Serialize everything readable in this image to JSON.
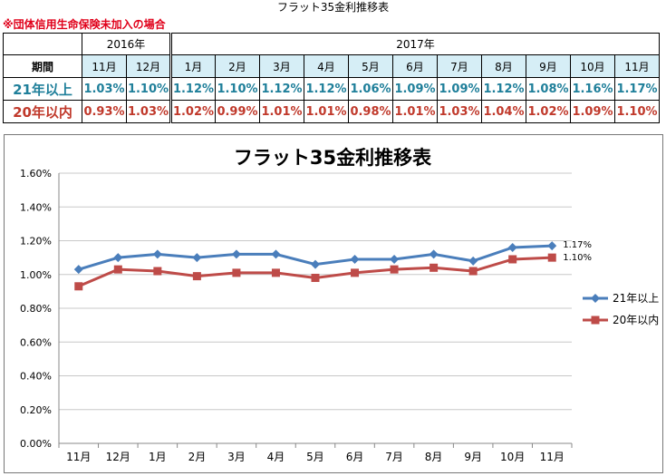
{
  "page_title": "フラット35金利推移表",
  "note": "※団体信用生命保険未加入の場合",
  "table": {
    "years": [
      {
        "label": "2016年",
        "span": 2
      },
      {
        "label": "2017年",
        "span": 11
      }
    ],
    "period_label": "期間",
    "months": [
      "11月",
      "12月",
      "1月",
      "2月",
      "3月",
      "4月",
      "5月",
      "6月",
      "7月",
      "8月",
      "9月",
      "10月",
      "11月"
    ],
    "rows": [
      {
        "label": "21年以上",
        "values": [
          "1.03%",
          "1.10%",
          "1.12%",
          "1.10%",
          "1.12%",
          "1.12%",
          "1.06%",
          "1.09%",
          "1.09%",
          "1.12%",
          "1.08%",
          "1.16%",
          "1.17%"
        ]
      },
      {
        "label": "20年以内",
        "values": [
          "0.93%",
          "1.03%",
          "1.02%",
          "0.99%",
          "1.01%",
          "1.01%",
          "0.98%",
          "1.01%",
          "1.03%",
          "1.04%",
          "1.02%",
          "1.09%",
          "1.10%"
        ]
      }
    ]
  },
  "chart_data": {
    "type": "line",
    "title": "フラット35金利推移表",
    "categories": [
      "11月",
      "12月",
      "1月",
      "2月",
      "3月",
      "4月",
      "5月",
      "6月",
      "7月",
      "8月",
      "9月",
      "10月",
      "11月"
    ],
    "ylim": [
      0,
      1.6
    ],
    "yticks": [
      "0.00%",
      "0.20%",
      "0.40%",
      "0.60%",
      "0.80%",
      "1.00%",
      "1.20%",
      "1.40%",
      "1.60%"
    ],
    "grid": true,
    "legend_position": "right",
    "series": [
      {
        "name": "21年以上",
        "color": "#4a7ebb",
        "marker": "diamond",
        "values": [
          1.03,
          1.1,
          1.12,
          1.1,
          1.12,
          1.12,
          1.06,
          1.09,
          1.09,
          1.12,
          1.08,
          1.16,
          1.17
        ],
        "end_label": "1.17%"
      },
      {
        "name": "20年以内",
        "color": "#be4b48",
        "marker": "square",
        "values": [
          0.93,
          1.03,
          1.02,
          0.99,
          1.01,
          1.01,
          0.98,
          1.01,
          1.03,
          1.04,
          1.02,
          1.09,
          1.1
        ],
        "end_label": "1.10%"
      }
    ]
  }
}
